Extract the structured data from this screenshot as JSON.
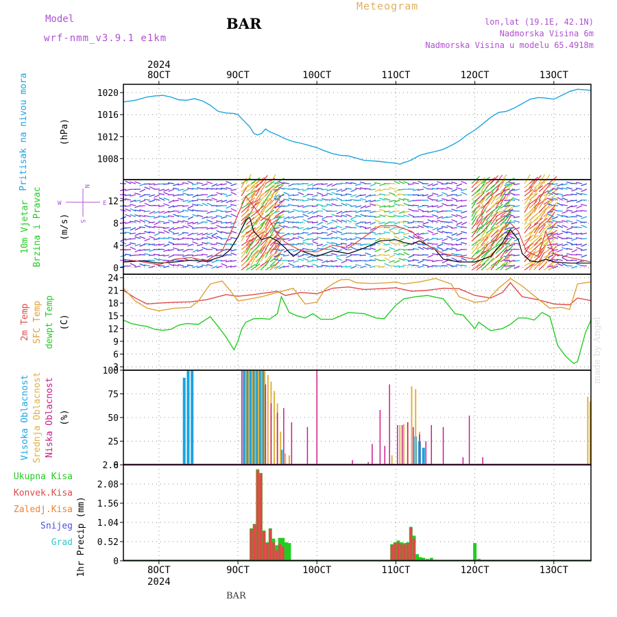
{
  "header": {
    "meteogram": "Meteogram",
    "station": "BAR",
    "model_label": "Model",
    "model_name": "wrf-nmm_v3.9.1 e1km",
    "coords": "lon,lat (19.1E, 42.1N)",
    "elevation": "Nadmorska Visina 6m",
    "model_elevation": "Nadmorska Visina u modelu 65.4918m",
    "year": "2024",
    "footer_station": "BAR",
    "made_by": "made by Angel"
  },
  "colors": {
    "pressure": "#1aa3e0",
    "wind_speed": "#000000",
    "gust": "#e04040",
    "t2m": "#e04848",
    "sfc": "#e0a030",
    "dewpt": "#22cc22",
    "high_cloud": "#1aa3e0",
    "mid_cloud": "#e0b040",
    "low_cloud": "#cc1a88",
    "total_precip": "#22cc22",
    "conv_precip": "#e04848",
    "freezing": "#f08030",
    "snow": "#5050e0",
    "hail": "#30c8c8",
    "pressure_label": "#1aa3e0",
    "wind_label": "#22cc22",
    "wind_compass": "#b050d0"
  },
  "chart_data": [
    {
      "type": "line",
      "x_axis": {
        "tick_labels": [
          "8OCT",
          "9OCT",
          "10OCT",
          "11OCT",
          "12OCT",
          "13OCT"
        ],
        "tick_days": [
          8,
          9,
          10,
          11,
          12,
          13
        ],
        "range_days": [
          7.55,
          13.47
        ],
        "year": "2024"
      },
      "ylabel_lines": [
        "Pritisak na nivou mora"
      ],
      "ylabel_unit": "(hPa)",
      "ylim": [
        1004.2,
        1021.5
      ],
      "yticks": [
        1008,
        1012,
        1016,
        1020
      ],
      "grid": true,
      "series": [
        {
          "name": "Pritisak na nivou mora",
          "x": [
            7.55,
            7.7,
            7.85,
            7.95,
            8.05,
            8.15,
            8.25,
            8.35,
            8.45,
            8.55,
            8.65,
            8.75,
            8.85,
            8.95,
            9.0,
            9.08,
            9.15,
            9.2,
            9.25,
            9.3,
            9.35,
            9.4,
            9.5,
            9.6,
            9.7,
            9.8,
            9.9,
            10.0,
            10.1,
            10.2,
            10.3,
            10.4,
            10.5,
            10.6,
            10.7,
            10.8,
            10.9,
            11.0,
            11.05,
            11.1,
            11.15,
            11.2,
            11.3,
            11.4,
            11.5,
            11.6,
            11.7,
            11.8,
            11.9,
            12.0,
            12.1,
            12.2,
            12.3,
            12.4,
            12.5,
            12.6,
            12.7,
            12.8,
            12.9,
            13.0,
            13.1,
            13.2,
            13.3,
            13.47
          ],
          "y": [
            1018.3,
            1018.6,
            1019.2,
            1019.4,
            1019.5,
            1019.2,
            1018.7,
            1018.6,
            1018.9,
            1018.5,
            1017.7,
            1016.6,
            1016.3,
            1016.2,
            1016.0,
            1014.8,
            1013.8,
            1012.6,
            1012.3,
            1012.6,
            1013.4,
            1012.9,
            1012.3,
            1011.6,
            1011.1,
            1010.8,
            1010.4,
            1010.0,
            1009.4,
            1008.9,
            1008.6,
            1008.5,
            1008.1,
            1007.7,
            1007.6,
            1007.5,
            1007.3,
            1007.2,
            1007.0,
            1007.3,
            1007.5,
            1007.8,
            1008.6,
            1009.0,
            1009.3,
            1009.7,
            1010.4,
            1011.2,
            1012.3,
            1013.2,
            1014.3,
            1015.5,
            1016.4,
            1016.6,
            1017.2,
            1018.0,
            1018.8,
            1019.1,
            1019.0,
            1018.8,
            1019.5,
            1020.2,
            1020.6,
            1020.4
          ]
        }
      ]
    },
    {
      "type": "line",
      "ylabel_lines": [
        "10m Vjetar",
        "Brzina i Pravac"
      ],
      "ylabel_unit": "(m/s)",
      "compass": {
        "north": "N",
        "south": "S",
        "west": "W",
        "east": "E"
      },
      "ylim": [
        -1.2,
        15.8
      ],
      "yticks": [
        0,
        4,
        8,
        12
      ],
      "grid": true,
      "series": [
        {
          "name": "10m Vjetar Brzina",
          "x": [
            7.55,
            7.8,
            8.0,
            8.2,
            8.4,
            8.6,
            8.8,
            8.9,
            9.0,
            9.1,
            9.15,
            9.2,
            9.3,
            9.4,
            9.5,
            9.6,
            9.7,
            9.8,
            9.9,
            10.0,
            10.2,
            10.4,
            10.6,
            10.8,
            11.0,
            11.1,
            11.2,
            11.3,
            11.4,
            11.5,
            11.6,
            11.8,
            12.0,
            12.2,
            12.35,
            12.45,
            12.55,
            12.6,
            12.7,
            12.8,
            12.9,
            13.0,
            13.2,
            13.47
          ],
          "y": [
            1.0,
            1.2,
            0.8,
            1.0,
            1.3,
            1.1,
            2.0,
            3.2,
            5.5,
            8.5,
            9.0,
            6.5,
            5.0,
            5.5,
            4.8,
            3.5,
            2.0,
            3.0,
            2.5,
            2.0,
            3.0,
            2.5,
            3.5,
            4.8,
            5.0,
            4.5,
            4.2,
            4.8,
            4.0,
            3.2,
            1.5,
            1.0,
            1.0,
            2.0,
            4.5,
            6.8,
            5.0,
            2.5,
            1.2,
            1.0,
            1.5,
            1.0,
            0.8,
            0.8
          ]
        },
        {
          "name": "Udari",
          "x": [
            7.55,
            7.8,
            8.0,
            8.2,
            8.4,
            8.6,
            8.8,
            8.9,
            9.0,
            9.1,
            9.2,
            9.3,
            9.4,
            9.5,
            9.6,
            9.8,
            10.0,
            10.2,
            10.4,
            10.6,
            10.8,
            11.0,
            11.2,
            11.4,
            11.6,
            11.8,
            12.0,
            12.2,
            12.35,
            12.45,
            12.55,
            12.65,
            12.8,
            12.9,
            13.0,
            13.2,
            13.47
          ],
          "y": [
            1.5,
            1.0,
            0.5,
            1.5,
            1.8,
            1.2,
            3.0,
            6.0,
            9.5,
            12.8,
            11.0,
            9.0,
            8.5,
            6.0,
            4.5,
            3.0,
            2.8,
            4.0,
            3.5,
            5.5,
            7.5,
            7.5,
            6.5,
            4.0,
            2.5,
            2.0,
            1.5,
            3.5,
            7.0,
            8.0,
            6.5,
            3.0,
            2.0,
            6.5,
            2.5,
            1.8,
            1.0
          ]
        }
      ]
    },
    {
      "type": "line",
      "ylabel_lines": [
        "2m Temp",
        "SFC Temp",
        "dewpt Temp"
      ],
      "ylabel_unit": "(C)",
      "ylim": [
        2.2,
        24.8
      ],
      "yticks": [
        3,
        6,
        9,
        12,
        15,
        18,
        21,
        24
      ],
      "grid": true,
      "series": [
        {
          "name": "2m Temp",
          "x": [
            7.55,
            7.7,
            7.85,
            8.0,
            8.2,
            8.4,
            8.6,
            8.75,
            8.85,
            9.0,
            9.2,
            9.4,
            9.5,
            9.6,
            9.8,
            10.0,
            10.2,
            10.4,
            10.6,
            10.8,
            11.0,
            11.2,
            11.4,
            11.6,
            11.8,
            12.0,
            12.2,
            12.35,
            12.45,
            12.6,
            12.8,
            13.0,
            13.2,
            13.3,
            13.47
          ],
          "y": [
            21.0,
            19.2,
            17.8,
            18.0,
            18.2,
            18.3,
            18.8,
            19.5,
            20.0,
            19.6,
            20.0,
            20.5,
            20.8,
            19.8,
            20.5,
            20.2,
            21.5,
            21.8,
            21.2,
            21.4,
            21.6,
            20.8,
            21.0,
            21.5,
            21.4,
            19.8,
            19.2,
            20.5,
            22.8,
            19.5,
            18.8,
            17.8,
            17.6,
            19.2,
            18.6
          ]
        },
        {
          "name": "SFC Temp",
          "x": [
            7.55,
            7.7,
            7.85,
            8.0,
            8.2,
            8.4,
            8.5,
            8.65,
            8.8,
            8.9,
            9.0,
            9.1,
            9.3,
            9.5,
            9.7,
            9.85,
            10.0,
            10.1,
            10.2,
            10.3,
            10.4,
            10.5,
            10.7,
            10.9,
            11.0,
            11.1,
            11.3,
            11.5,
            11.7,
            11.8,
            12.0,
            12.15,
            12.3,
            12.45,
            12.6,
            12.8,
            12.95,
            13.1,
            13.2,
            13.3,
            13.47
          ],
          "y": [
            21.5,
            18.5,
            16.8,
            16.2,
            16.8,
            17.0,
            18.5,
            22.5,
            23.2,
            21.0,
            18.5,
            18.8,
            19.5,
            20.5,
            21.5,
            17.8,
            18.2,
            21.2,
            22.5,
            23.5,
            23.6,
            22.8,
            22.6,
            22.8,
            23.0,
            22.5,
            23.0,
            23.8,
            22.5,
            19.5,
            18.2,
            18.5,
            21.5,
            23.8,
            22.0,
            19.0,
            16.8,
            17.0,
            16.5,
            22.5,
            23.0
          ]
        },
        {
          "name": "dewpt Temp",
          "x": [
            7.55,
            7.65,
            7.75,
            7.85,
            7.95,
            8.05,
            8.15,
            8.25,
            8.35,
            8.5,
            8.65,
            8.75,
            8.85,
            8.95,
            9.0,
            9.05,
            9.1,
            9.2,
            9.3,
            9.4,
            9.5,
            9.55,
            9.65,
            9.75,
            9.85,
            9.95,
            10.05,
            10.2,
            10.4,
            10.6,
            10.75,
            10.85,
            11.0,
            11.1,
            11.25,
            11.4,
            11.6,
            11.75,
            11.85,
            12.0,
            12.05,
            12.2,
            12.35,
            12.45,
            12.55,
            12.65,
            12.75,
            12.85,
            12.95,
            13.05,
            13.15,
            13.25,
            13.3,
            13.4,
            13.47
          ],
          "y": [
            14.0,
            13.2,
            12.8,
            12.5,
            11.8,
            11.6,
            11.8,
            12.8,
            13.2,
            13.0,
            14.8,
            12.5,
            10.0,
            7.0,
            9.0,
            12.0,
            13.5,
            14.3,
            14.4,
            14.2,
            15.5,
            19.5,
            15.8,
            15.0,
            14.5,
            15.5,
            14.2,
            14.2,
            15.8,
            15.5,
            14.5,
            14.3,
            17.5,
            19.0,
            19.5,
            19.8,
            19.0,
            15.5,
            15.2,
            12.0,
            13.5,
            11.5,
            12.0,
            13.0,
            14.5,
            14.5,
            14.0,
            15.8,
            14.8,
            8.0,
            5.5,
            3.8,
            4.2,
            11.0,
            14.0
          ]
        }
      ]
    },
    {
      "type": "bar",
      "ylabel_lines": [
        "Visoka Oblacnost",
        "Srednja Oblacnost",
        "Niska Oblacnost"
      ],
      "ylabel_unit": "(%)",
      "ylim": [
        0,
        100
      ],
      "yticks": [
        0,
        25,
        50,
        75,
        100
      ],
      "grid": true,
      "series": [
        {
          "name": "Visoka Oblacnost",
          "x": [
            8.32,
            8.37,
            8.42,
            9.08,
            9.12,
            9.16,
            9.2,
            9.24,
            9.28,
            9.32,
            9.55,
            11.25,
            11.3,
            11.35
          ],
          "values": [
            92,
            100,
            100,
            100,
            100,
            100,
            100,
            100,
            100,
            100,
            16,
            30,
            25,
            18
          ]
        },
        {
          "name": "Srednja Oblacnost",
          "x": [
            9.1,
            9.14,
            9.18,
            9.22,
            9.26,
            9.3,
            9.34,
            9.38,
            9.42,
            9.46,
            9.5,
            9.54,
            9.6,
            9.65,
            10.95,
            11.05,
            11.1,
            11.15,
            11.2,
            11.25,
            11.3,
            13.43,
            13.46
          ],
          "values": [
            100,
            100,
            100,
            100,
            100,
            100,
            100,
            95,
            88,
            78,
            65,
            35,
            12,
            10,
            10,
            42,
            43,
            45,
            83,
            80,
            35,
            72,
            67
          ]
        },
        {
          "name": "Niska Oblacnost",
          "x": [
            9.05,
            9.35,
            9.42,
            9.5,
            9.58,
            9.68,
            9.88,
            10.0,
            10.45,
            10.65,
            10.7,
            10.8,
            10.86,
            10.92,
            11.02,
            11.08,
            11.15,
            11.22,
            11.3,
            11.38,
            11.45,
            11.6,
            11.85,
            11.93,
            12.1
          ],
          "values": [
            100,
            85,
            65,
            55,
            60,
            45,
            40,
            100,
            5,
            3,
            22,
            58,
            20,
            85,
            42,
            42,
            45,
            40,
            32,
            25,
            42,
            40,
            8,
            52,
            8
          ]
        }
      ]
    },
    {
      "type": "bar",
      "ylabel_lines": [
        "1hr Precip"
      ],
      "ylabel_unit": "(mm)",
      "legend": [
        "Ukupna Kisa",
        "Konvek.Kisa",
        "Zaledj.Kisa",
        "Snijeg",
        "Grad"
      ],
      "ylim": [
        0,
        2.6
      ],
      "yticks": [
        0,
        0.52,
        1.04,
        1.56,
        2.08,
        2.6
      ],
      "grid": true,
      "series": [
        {
          "name": "Ukupna Kisa",
          "x": [
            9.17,
            9.21,
            9.25,
            9.29,
            9.33,
            9.37,
            9.41,
            9.45,
            9.49,
            9.53,
            9.57,
            9.61,
            9.65,
            10.95,
            10.99,
            11.03,
            11.07,
            11.11,
            11.15,
            11.19,
            11.23,
            11.27,
            11.31,
            11.35,
            11.4,
            11.45,
            11.5,
            12.0,
            12.05
          ],
          "values": [
            0.88,
            1.0,
            2.48,
            2.38,
            0.82,
            0.5,
            0.88,
            0.6,
            0.42,
            0.62,
            0.62,
            0.5,
            0.48,
            0.45,
            0.5,
            0.55,
            0.5,
            0.48,
            0.5,
            0.92,
            0.68,
            0.18,
            0.1,
            0.08,
            0.05,
            0.08,
            0.03,
            0.48,
            0.05
          ]
        },
        {
          "name": "Konvek.Kisa",
          "x": [
            9.17,
            9.21,
            9.25,
            9.29,
            9.33,
            9.37,
            9.41,
            9.45,
            9.49,
            9.53,
            9.57,
            10.95,
            10.99,
            11.03,
            11.07,
            11.11,
            11.15,
            11.19,
            11.23
          ],
          "values": [
            0.86,
            0.98,
            2.45,
            2.35,
            0.8,
            0.48,
            0.86,
            0.5,
            0.28,
            0.45,
            0.38,
            0.43,
            0.48,
            0.5,
            0.45,
            0.44,
            0.48,
            0.9,
            0.6
          ]
        }
      ]
    }
  ]
}
